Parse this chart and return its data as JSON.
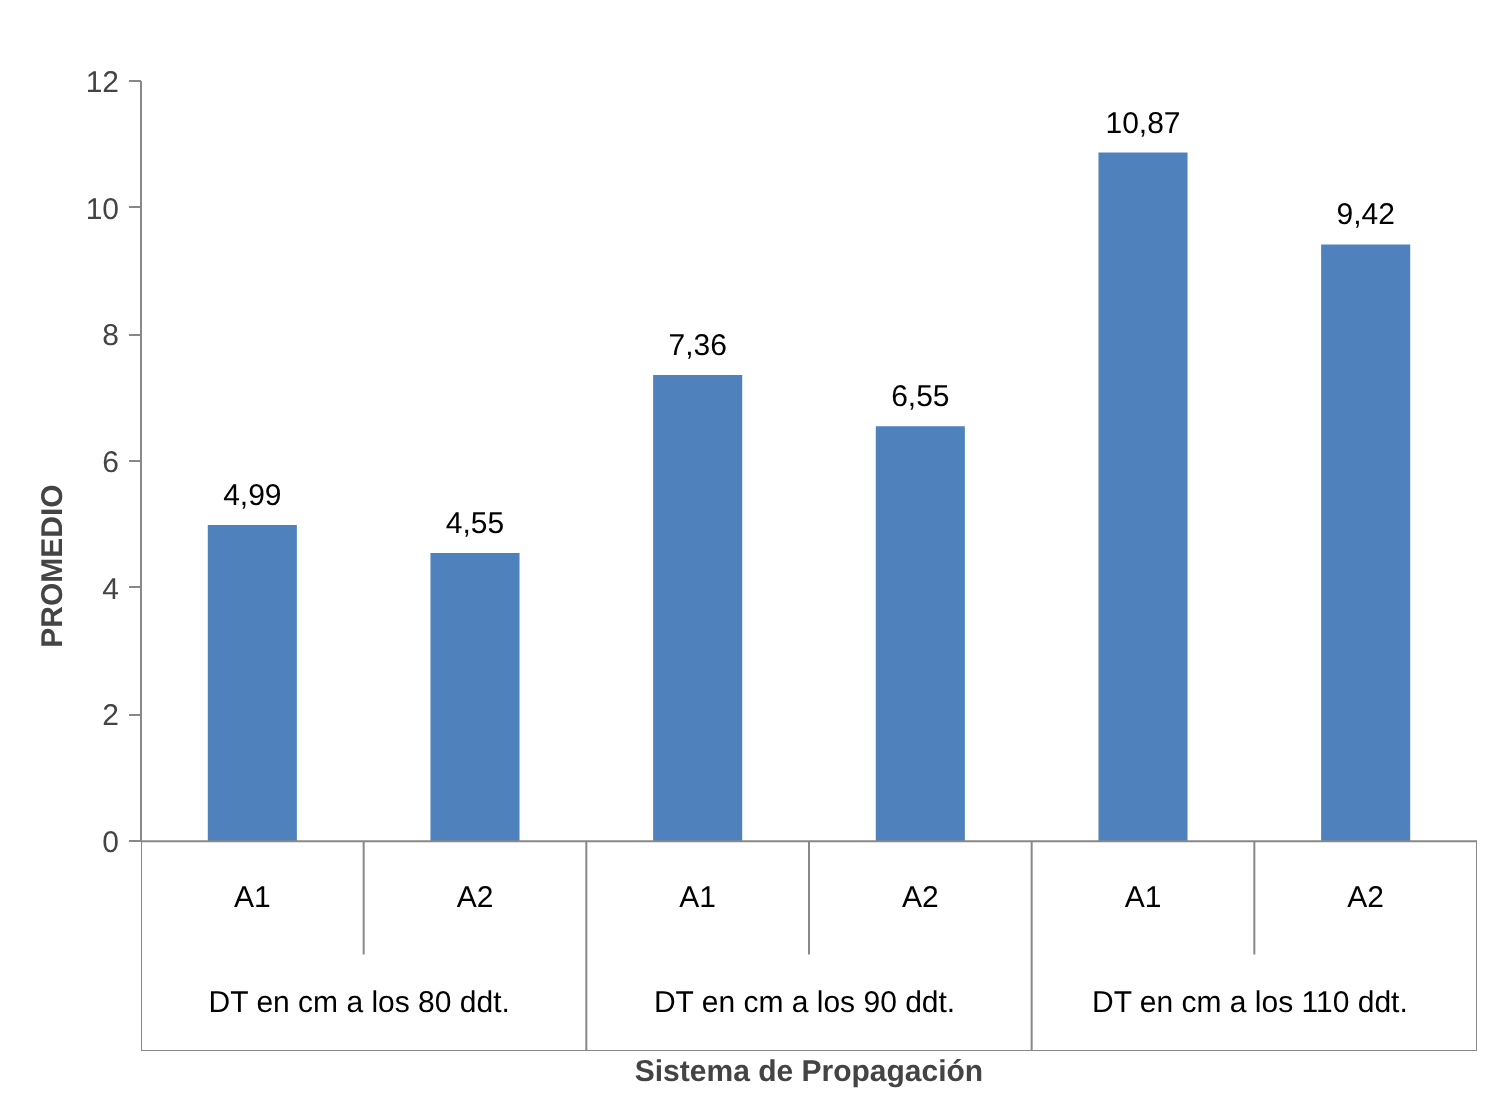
{
  "chart_data": {
    "type": "bar",
    "xlabel": "Sistema de Propagación",
    "ylabel": "PROMEDIO",
    "categories": [
      "A1",
      "A2",
      "A1",
      "A2",
      "A1",
      "A2"
    ],
    "values": [
      4.99,
      4.55,
      7.36,
      6.55,
      10.87,
      9.42
    ],
    "value_labels": [
      "4,99",
      "4,55",
      "7,36",
      "6,55",
      "10,87",
      "9,42"
    ],
    "color": "#4f81bd",
    "ylim": [
      0,
      12
    ],
    "yticks": [
      0,
      2,
      4,
      6,
      8,
      10,
      12
    ],
    "grid": false,
    "annotations": [
      "DT  en cm a los 80 ddt.",
      "DT  en cm a los 90 ddt.",
      "DT  en cm a los 110 ddt."
    ]
  }
}
